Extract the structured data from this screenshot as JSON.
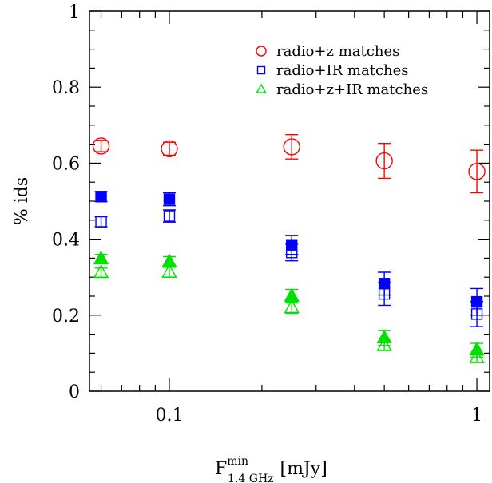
{
  "chart_data": {
    "type": "scatter",
    "xscale": "log",
    "xlim": [
      0.055,
      1.1
    ],
    "ylim": [
      0,
      1
    ],
    "x_tick_labels": [
      "0.1",
      "1"
    ],
    "y_tick_labels": [
      "0",
      "0.2",
      "0.4",
      "0.6",
      "0.8",
      "1"
    ],
    "ylabel": "% ids",
    "xlabel": {
      "base": "F",
      "sup": "min",
      "sub": "1.4 GHz",
      "unit": "[mJy]"
    },
    "legend_position": "top-right",
    "series": [
      {
        "name": "radio+z matches",
        "color": "#ff0000",
        "marker": "circle",
        "filled": false,
        "x": [
          0.06,
          0.1,
          0.25,
          0.5,
          1.0
        ],
        "y": [
          0.645,
          0.638,
          0.643,
          0.606,
          0.578
        ],
        "yerr": [
          0.015,
          0.017,
          0.032,
          0.046,
          0.056
        ]
      },
      {
        "name": "radio+IR matches",
        "color": "#0000ff",
        "marker": "square",
        "filled": false,
        "x": [
          0.06,
          0.1,
          0.25,
          0.5,
          1.0
        ],
        "y": [
          0.446,
          0.461,
          0.365,
          0.256,
          0.203
        ],
        "yerr": [
          0.013,
          0.016,
          0.022,
          0.03,
          0.033
        ]
      },
      {
        "name": "radio+IR matches (filled)",
        "color": "#0000ff",
        "marker": "square",
        "filled": true,
        "x": [
          0.06,
          0.1,
          0.25,
          0.5,
          1.0
        ],
        "y": [
          0.512,
          0.505,
          0.385,
          0.283,
          0.235
        ],
        "yerr": [
          0.013,
          0.017,
          0.025,
          0.03,
          0.035
        ]
      },
      {
        "name": "radio+z+IR matches",
        "color": "#00e000",
        "marker": "triangle",
        "filled": false,
        "x": [
          0.06,
          0.1,
          0.25,
          0.5,
          1.0
        ],
        "y": [
          0.312,
          0.313,
          0.22,
          0.12,
          0.088
        ],
        "yerr": [
          0.012,
          0.013,
          0.015,
          0.012,
          0.012
        ]
      },
      {
        "name": "radio+z+IR matches (filled)",
        "color": "#00e000",
        "marker": "triangle",
        "filled": true,
        "x": [
          0.06,
          0.1,
          0.25,
          0.5,
          1.0
        ],
        "y": [
          0.348,
          0.34,
          0.25,
          0.14,
          0.108
        ],
        "yerr": [
          0.012,
          0.014,
          0.018,
          0.02,
          0.018
        ]
      }
    ],
    "legend": [
      {
        "label": "radio+z matches",
        "marker": "circle",
        "color": "#ff0000"
      },
      {
        "label": "radio+IR matches",
        "marker": "square",
        "color": "#0000ff"
      },
      {
        "label": "radio+z+IR matches",
        "marker": "triangle",
        "color": "#00e000"
      }
    ]
  }
}
